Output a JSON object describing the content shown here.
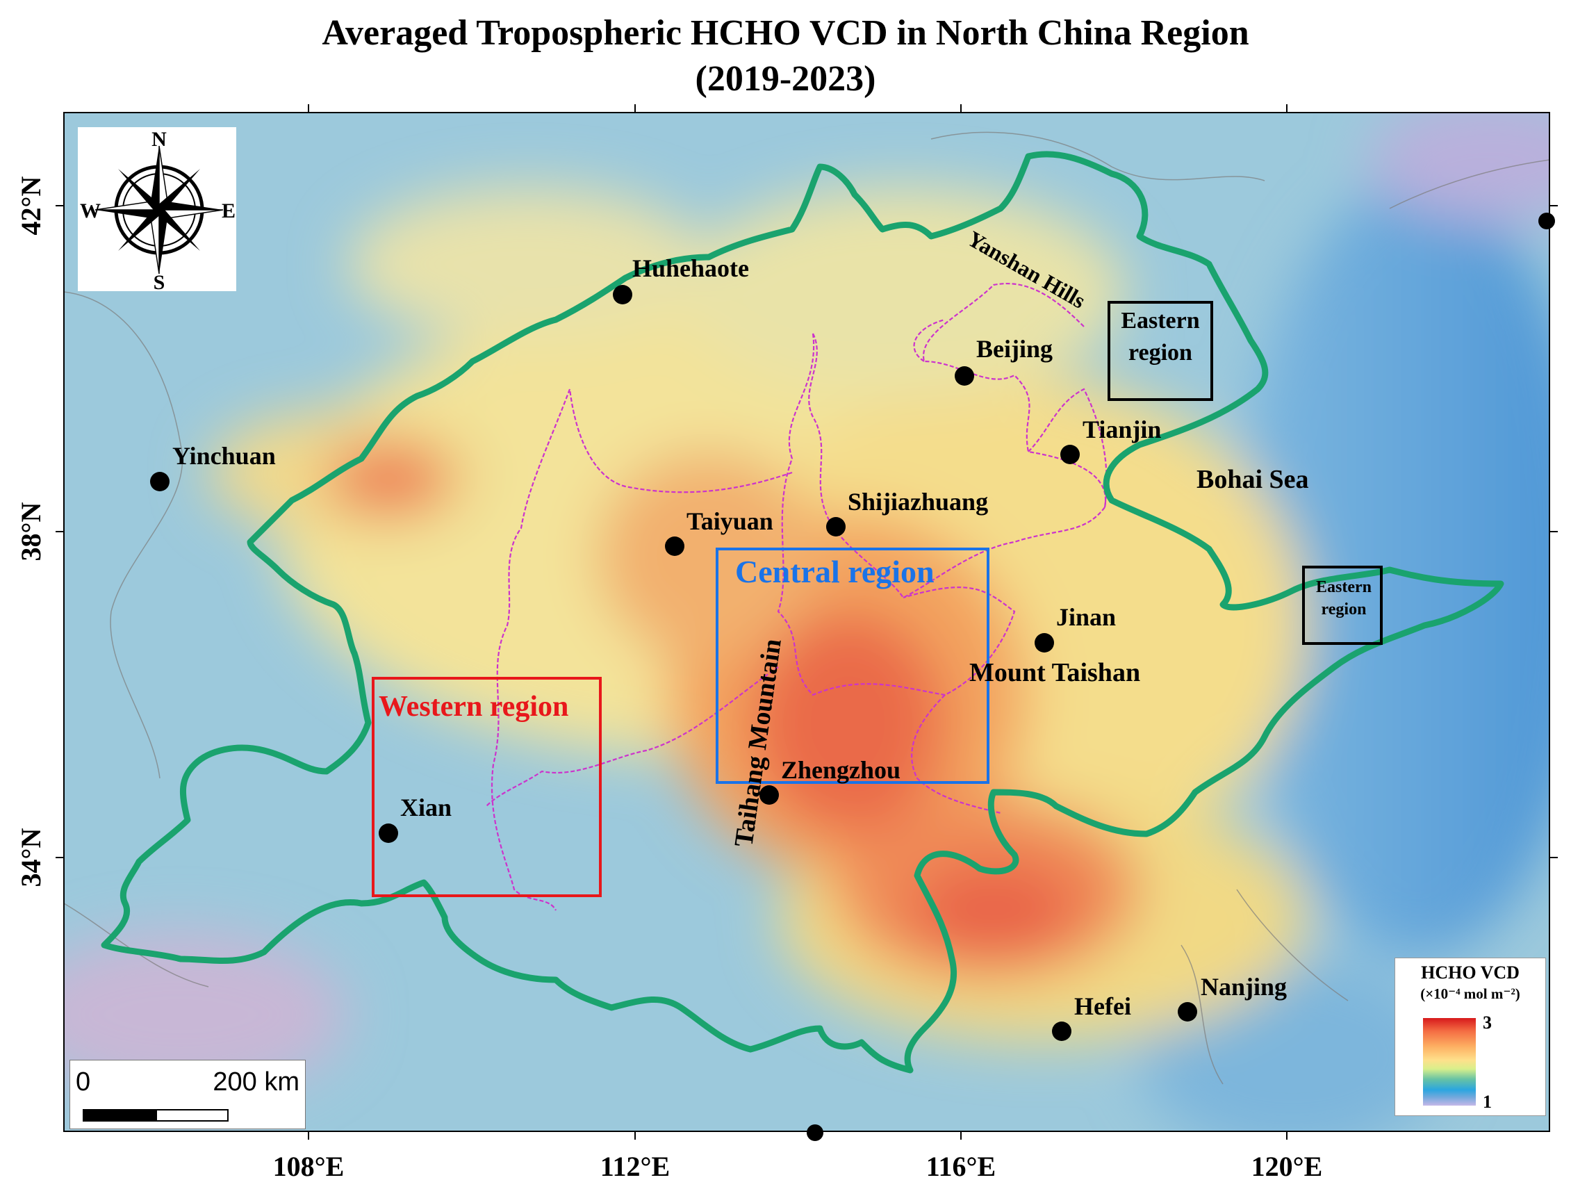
{
  "title": {
    "line1": "Averaged Tropospheric HCHO VCD in North China Region",
    "line2": "(2019-2023)"
  },
  "axes": {
    "x_ticks": [
      "108°E",
      "112°E",
      "116°E",
      "120°E"
    ],
    "y_ticks": [
      "42°N",
      "38°N",
      "34°N"
    ]
  },
  "compass": {
    "north": "N",
    "south": "S",
    "east": "E",
    "west": "W"
  },
  "cities": [
    {
      "name": "Huhehaote"
    },
    {
      "name": "Beijing"
    },
    {
      "name": "Tianjin"
    },
    {
      "name": "Yinchuan"
    },
    {
      "name": "Shijiazhuang"
    },
    {
      "name": "Taiyuan"
    },
    {
      "name": "Jinan"
    },
    {
      "name": "Zhengzhou"
    },
    {
      "name": "Xian"
    },
    {
      "name": "Hefei"
    },
    {
      "name": "Nanjing"
    }
  ],
  "features": {
    "yanshan": "Yanshan  Hills",
    "bohai": "Bohai Sea",
    "taishan": "Mount Taishan",
    "taihang": "Taihang Mountain"
  },
  "regions": {
    "central": "Central region",
    "western": "Western region",
    "eastern_north_line1": "Eastern",
    "eastern_north_line2": "region",
    "eastern_south_line1": "Eastern",
    "eastern_south_line2": "region"
  },
  "colors": {
    "central_box": "#1a73e8",
    "western_box": "#e8171b",
    "eastern_box": "#000000",
    "boundary": "#1aa36e",
    "province_lines": "#cc33cc"
  },
  "scale_bar": {
    "start": "0",
    "end": "200 km"
  },
  "legend": {
    "title": "HCHO VCD",
    "units": "(×10⁻⁴ mol m⁻²)",
    "max": "3",
    "min": "1"
  }
}
